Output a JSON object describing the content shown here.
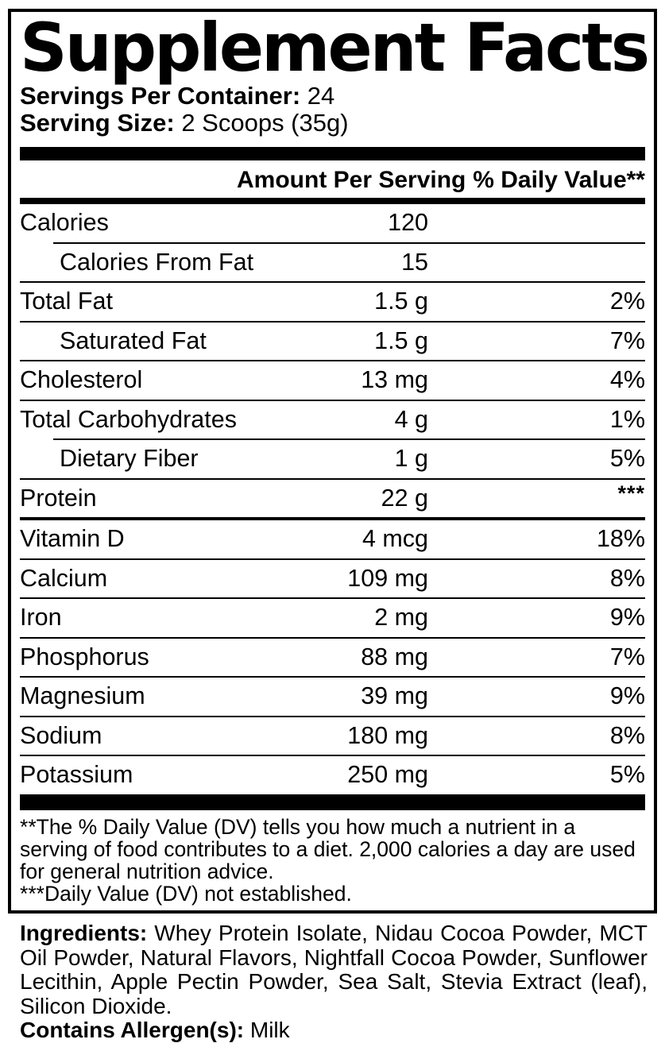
{
  "label": {
    "title": "Supplement Facts",
    "servings_per_container": {
      "label": "Servings Per Container:",
      "value": "24"
    },
    "serving_size": {
      "label": "Serving Size:",
      "value": "2 Scoops (35g)"
    },
    "table": {
      "headers": {
        "amount": "Amount Per Serving",
        "dv": "% Daily Value**"
      },
      "rows": [
        {
          "name": "Calories",
          "amount": "120",
          "dv": "",
          "indent": false,
          "rule_above": "none"
        },
        {
          "name": "Calories From Fat",
          "amount": "15",
          "dv": "",
          "indent": true,
          "rule_above": "thin-indent"
        },
        {
          "name": "Total Fat",
          "amount": "1.5 g",
          "dv": "2%",
          "indent": false,
          "rule_above": "thin"
        },
        {
          "name": "Saturated Fat",
          "amount": "1.5 g",
          "dv": "7%",
          "indent": true,
          "rule_above": "thin"
        },
        {
          "name": "Cholesterol",
          "amount": "13 mg",
          "dv": "4%",
          "indent": false,
          "rule_above": "thin"
        },
        {
          "name": "Total Carbohydrates",
          "amount": "4 g",
          "dv": "1%",
          "indent": false,
          "rule_above": "thin"
        },
        {
          "name": "Dietary Fiber",
          "amount": "1 g",
          "dv": "5%",
          "indent": true,
          "rule_above": "thin-indent"
        },
        {
          "name": "Protein",
          "amount": "22 g",
          "dv": "***",
          "dv_sup": true,
          "indent": false,
          "rule_above": "thin"
        },
        {
          "name": "Vitamin D",
          "amount": "4 mcg",
          "dv": "18%",
          "indent": false,
          "rule_above": "medium"
        },
        {
          "name": "Calcium",
          "amount": "109 mg",
          "dv": "8%",
          "indent": false,
          "rule_above": "thin"
        },
        {
          "name": "Iron",
          "amount": "2 mg",
          "dv": "9%",
          "indent": false,
          "rule_above": "thin"
        },
        {
          "name": "Phosphorus",
          "amount": "88 mg",
          "dv": "7%",
          "indent": false,
          "rule_above": "thin"
        },
        {
          "name": "Magnesium",
          "amount": "39 mg",
          "dv": "9%",
          "indent": false,
          "rule_above": "thin"
        },
        {
          "name": "Sodium",
          "amount": "180 mg",
          "dv": "8%",
          "indent": false,
          "rule_above": "thin"
        },
        {
          "name": "Potassium",
          "amount": "250 mg",
          "dv": "5%",
          "indent": false,
          "rule_above": "thin"
        }
      ]
    },
    "footnotes": [
      "**The % Daily Value (DV) tells you how much a nutrient in a serving of food contributes to a diet. 2,000 calories a day are used for general nutrition advice.",
      "***Daily Value (DV) not established."
    ]
  },
  "ingredients": {
    "label": "Ingredients:",
    "text": "Whey Protein Isolate, Nidau Cocoa Powder, MCT Oil Powder, Natural Flavors, Nightfall Cocoa Powder, Sunflower Lecithin, Apple Pectin Powder, Sea Salt, Stevia Extract (leaf), Silicon Dioxide."
  },
  "allergens": {
    "label": "Contains Allergen(s):",
    "value": "Milk"
  },
  "colors": {
    "text": "#000000",
    "background": "#ffffff"
  }
}
